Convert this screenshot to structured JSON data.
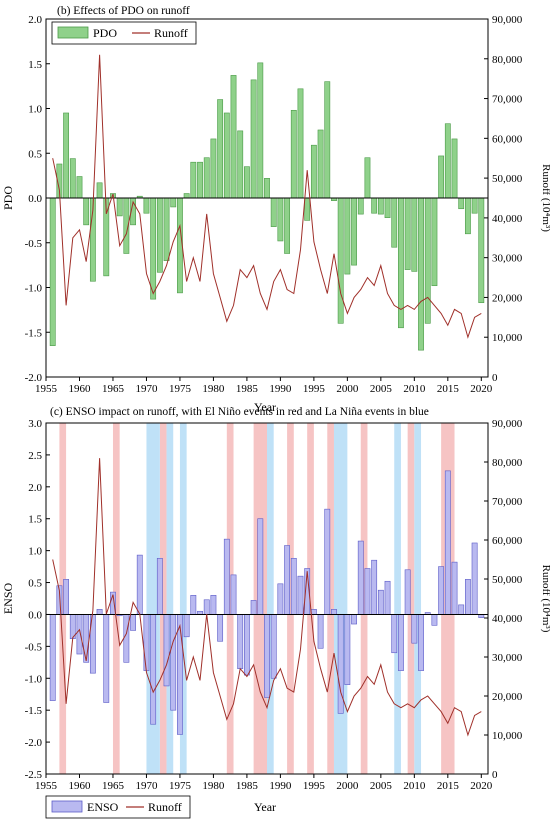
{
  "charts": [
    {
      "title": "(b) Effects of PDO on runoff",
      "xlabel": "Year",
      "ylabel_left": "PDO",
      "ylabel_right": "Runoff (10⁴m³)",
      "legend": {
        "bar_label": "PDO",
        "line_label": "Runoff"
      }
    },
    {
      "title": "(c) ENSO impact on runoff, with El Niño events in red and La Niña events in blue",
      "xlabel": "Year",
      "ylabel_left": "ENSO",
      "ylabel_right": "Runoff (10⁴m³)",
      "legend": {
        "bar_label": "ENSO",
        "line_label": "Runoff"
      }
    }
  ],
  "colors": {
    "pdo_bar": "#8fd18a",
    "pdo_bar_edge": "#4a9a47",
    "enso_bar": "#b9b9f0",
    "enso_bar_edge": "#5c5cc8",
    "runoff_line": "#a0302a",
    "el_nino_band": "#f6c4c4",
    "la_nina_band": "#bfe1f7",
    "zero_line": "#000000"
  },
  "chart_data": [
    {
      "type": "bar",
      "title": "(b) Effects of PDO on runoff",
      "xlabel": "Year",
      "ylabel": "PDO",
      "y2label": "Runoff (10⁴m³)",
      "xlim": [
        1955,
        2021
      ],
      "ylim": [
        -2.0,
        2.0
      ],
      "y2lim": [
        0,
        90000
      ],
      "xticks": [
        1955,
        1960,
        1965,
        1970,
        1975,
        1980,
        1985,
        1990,
        1995,
        2000,
        2005,
        2010,
        2015,
        2020
      ],
      "yticks": [
        -2.0,
        -1.5,
        -1.0,
        -0.5,
        0.0,
        0.5,
        1.0,
        1.5,
        2.0
      ],
      "y2ticks": [
        0,
        10000,
        20000,
        30000,
        40000,
        50000,
        60000,
        70000,
        80000,
        90000
      ],
      "legend_position": "top-left",
      "series": [
        {
          "name": "PDO",
          "type": "bar",
          "x": [
            1956,
            1957,
            1958,
            1959,
            1960,
            1961,
            1962,
            1963,
            1964,
            1965,
            1966,
            1967,
            1968,
            1969,
            1970,
            1971,
            1972,
            1973,
            1974,
            1975,
            1976,
            1977,
            1978,
            1979,
            1980,
            1981,
            1982,
            1983,
            1984,
            1985,
            1986,
            1987,
            1988,
            1989,
            1990,
            1991,
            1992,
            1993,
            1994,
            1995,
            1996,
            1997,
            1998,
            1999,
            2000,
            2001,
            2002,
            2003,
            2004,
            2005,
            2006,
            2007,
            2008,
            2009,
            2010,
            2011,
            2012,
            2013,
            2014,
            2015,
            2016,
            2017,
            2018,
            2019,
            2020
          ],
          "values": [
            -1.65,
            0.38,
            0.95,
            0.44,
            0.24,
            -0.3,
            -0.93,
            0.17,
            -0.87,
            0.05,
            -0.2,
            -0.62,
            -0.3,
            0.02,
            -0.17,
            -1.13,
            -0.83,
            -0.7,
            -0.1,
            -1.06,
            0.05,
            0.4,
            0.4,
            0.45,
            0.66,
            1.1,
            0.95,
            1.37,
            0.75,
            0.35,
            1.32,
            1.51,
            0.22,
            -0.32,
            -0.48,
            -0.62,
            0.98,
            1.22,
            -0.25,
            0.59,
            0.76,
            1.3,
            -0.03,
            -1.4,
            -0.85,
            -0.75,
            -0.18,
            0.45,
            -0.17,
            -0.18,
            -0.22,
            -0.55,
            -1.45,
            -0.8,
            -0.82,
            -1.7,
            -1.4,
            -0.98,
            0.47,
            0.83,
            0.66,
            -0.12,
            -0.4,
            -0.17,
            -1.17
          ]
        },
        {
          "name": "Runoff",
          "type": "line",
          "axis": "right",
          "x": [
            1956,
            1957,
            1958,
            1959,
            1960,
            1961,
            1962,
            1963,
            1964,
            1965,
            1966,
            1967,
            1968,
            1969,
            1970,
            1971,
            1972,
            1973,
            1974,
            1975,
            1976,
            1977,
            1978,
            1979,
            1980,
            1981,
            1982,
            1983,
            1984,
            1985,
            1986,
            1987,
            1988,
            1989,
            1990,
            1991,
            1992,
            1993,
            1994,
            1995,
            1996,
            1997,
            1998,
            1999,
            2000,
            2001,
            2002,
            2003,
            2004,
            2005,
            2006,
            2007,
            2008,
            2009,
            2010,
            2011,
            2012,
            2013,
            2014,
            2015,
            2016,
            2017,
            2018,
            2019,
            2020
          ],
          "values": [
            55000,
            47000,
            18000,
            35000,
            37000,
            29000,
            42000,
            81000,
            41000,
            46000,
            33000,
            36000,
            44000,
            41000,
            26000,
            21000,
            24000,
            28000,
            34000,
            38000,
            24000,
            30000,
            24000,
            41000,
            26000,
            20000,
            14000,
            18000,
            27000,
            25000,
            28000,
            21000,
            17000,
            24000,
            27000,
            22000,
            21000,
            32000,
            52000,
            34000,
            27000,
            21000,
            31000,
            21000,
            16000,
            20000,
            22000,
            25000,
            23000,
            28000,
            21000,
            18000,
            17000,
            18000,
            17000,
            19000,
            20000,
            18000,
            16000,
            13000,
            17000,
            16000,
            10000,
            15000,
            16000
          ]
        }
      ]
    },
    {
      "type": "bar",
      "title": "(c) ENSO impact on runoff, with El Niño events in red and La Niña events in blue",
      "xlabel": "Year",
      "ylabel": "ENSO",
      "y2label": "Runoff (10⁴m³)",
      "xlim": [
        1955,
        2021
      ],
      "ylim": [
        -2.5,
        3.0
      ],
      "y2lim": [
        0,
        90000
      ],
      "xticks": [
        1955,
        1960,
        1965,
        1970,
        1975,
        1980,
        1985,
        1990,
        1995,
        2000,
        2005,
        2010,
        2015,
        2020
      ],
      "yticks": [
        -2.5,
        -2.0,
        -1.5,
        -1.0,
        -0.5,
        0.0,
        0.5,
        1.0,
        1.5,
        2.0,
        2.5,
        3.0
      ],
      "y2ticks": [
        0,
        10000,
        20000,
        30000,
        40000,
        50000,
        60000,
        70000,
        80000,
        90000
      ],
      "legend_position": "bottom-left",
      "el_nino_periods": [
        [
          1957,
          1958
        ],
        [
          1965,
          1966
        ],
        [
          1972,
          1973
        ],
        [
          1982,
          1983
        ],
        [
          1986,
          1988
        ],
        [
          1991,
          1992
        ],
        [
          1994,
          1995
        ],
        [
          1997,
          1998
        ],
        [
          2002,
          2003
        ],
        [
          2009,
          2010
        ],
        [
          2014,
          2016
        ]
      ],
      "la_nina_periods": [
        [
          1970,
          1972
        ],
        [
          1973,
          1974
        ],
        [
          1975,
          1976
        ],
        [
          1988,
          1989
        ],
        [
          1998,
          2000
        ],
        [
          2007,
          2008
        ],
        [
          2010,
          2011
        ]
      ],
      "series": [
        {
          "name": "ENSO",
          "type": "bar",
          "x": [
            1956,
            1957,
            1958,
            1959,
            1960,
            1961,
            1962,
            1963,
            1964,
            1965,
            1966,
            1967,
            1968,
            1969,
            1970,
            1971,
            1972,
            1973,
            1974,
            1975,
            1976,
            1977,
            1978,
            1979,
            1980,
            1981,
            1982,
            1983,
            1984,
            1985,
            1986,
            1987,
            1988,
            1989,
            1990,
            1991,
            1992,
            1993,
            1994,
            1995,
            1996,
            1997,
            1998,
            1999,
            2000,
            2001,
            2002,
            2003,
            2004,
            2005,
            2006,
            2007,
            2008,
            2009,
            2010,
            2011,
            2012,
            2013,
            2014,
            2015,
            2016,
            2017,
            2018,
            2019,
            2020
          ],
          "values": [
            -1.35,
            0.45,
            0.55,
            -0.38,
            -0.62,
            -0.75,
            -0.92,
            0.08,
            -1.38,
            0.35,
            -0.02,
            -0.75,
            -0.25,
            0.93,
            -0.88,
            -1.72,
            0.88,
            -1.12,
            -1.5,
            -1.88,
            -0.35,
            0.3,
            0.05,
            0.23,
            0.3,
            -0.42,
            1.18,
            0.62,
            -0.85,
            -0.95,
            0.22,
            1.5,
            -1.3,
            -1.0,
            0.48,
            1.08,
            0.88,
            0.6,
            0.72,
            0.08,
            -0.53,
            1.65,
            0.08,
            -1.55,
            -1.1,
            -0.15,
            1.15,
            0.72,
            0.85,
            0.38,
            0.52,
            -0.6,
            -0.88,
            0.7,
            -0.45,
            -0.88,
            0.03,
            -0.17,
            0.75,
            2.25,
            0.82,
            0.15,
            0.55,
            1.12,
            -0.05
          ]
        },
        {
          "name": "Runoff",
          "type": "line",
          "axis": "right",
          "x": [
            1956,
            1957,
            1958,
            1959,
            1960,
            1961,
            1962,
            1963,
            1964,
            1965,
            1966,
            1967,
            1968,
            1969,
            1970,
            1971,
            1972,
            1973,
            1974,
            1975,
            1976,
            1977,
            1978,
            1979,
            1980,
            1981,
            1982,
            1983,
            1984,
            1985,
            1986,
            1987,
            1988,
            1989,
            1990,
            1991,
            1992,
            1993,
            1994,
            1995,
            1996,
            1997,
            1998,
            1999,
            2000,
            2001,
            2002,
            2003,
            2004,
            2005,
            2006,
            2007,
            2008,
            2009,
            2010,
            2011,
            2012,
            2013,
            2014,
            2015,
            2016,
            2017,
            2018,
            2019,
            2020
          ],
          "values": [
            55000,
            47000,
            18000,
            35000,
            37000,
            29000,
            42000,
            81000,
            41000,
            46000,
            33000,
            36000,
            44000,
            41000,
            26000,
            21000,
            24000,
            28000,
            34000,
            38000,
            24000,
            30000,
            24000,
            41000,
            26000,
            20000,
            14000,
            18000,
            27000,
            25000,
            28000,
            21000,
            17000,
            24000,
            27000,
            22000,
            21000,
            32000,
            52000,
            34000,
            27000,
            21000,
            31000,
            21000,
            16000,
            20000,
            22000,
            25000,
            23000,
            28000,
            21000,
            18000,
            17000,
            18000,
            17000,
            19000,
            20000,
            18000,
            16000,
            13000,
            17000,
            16000,
            10000,
            15000,
            16000
          ]
        }
      ]
    }
  ]
}
